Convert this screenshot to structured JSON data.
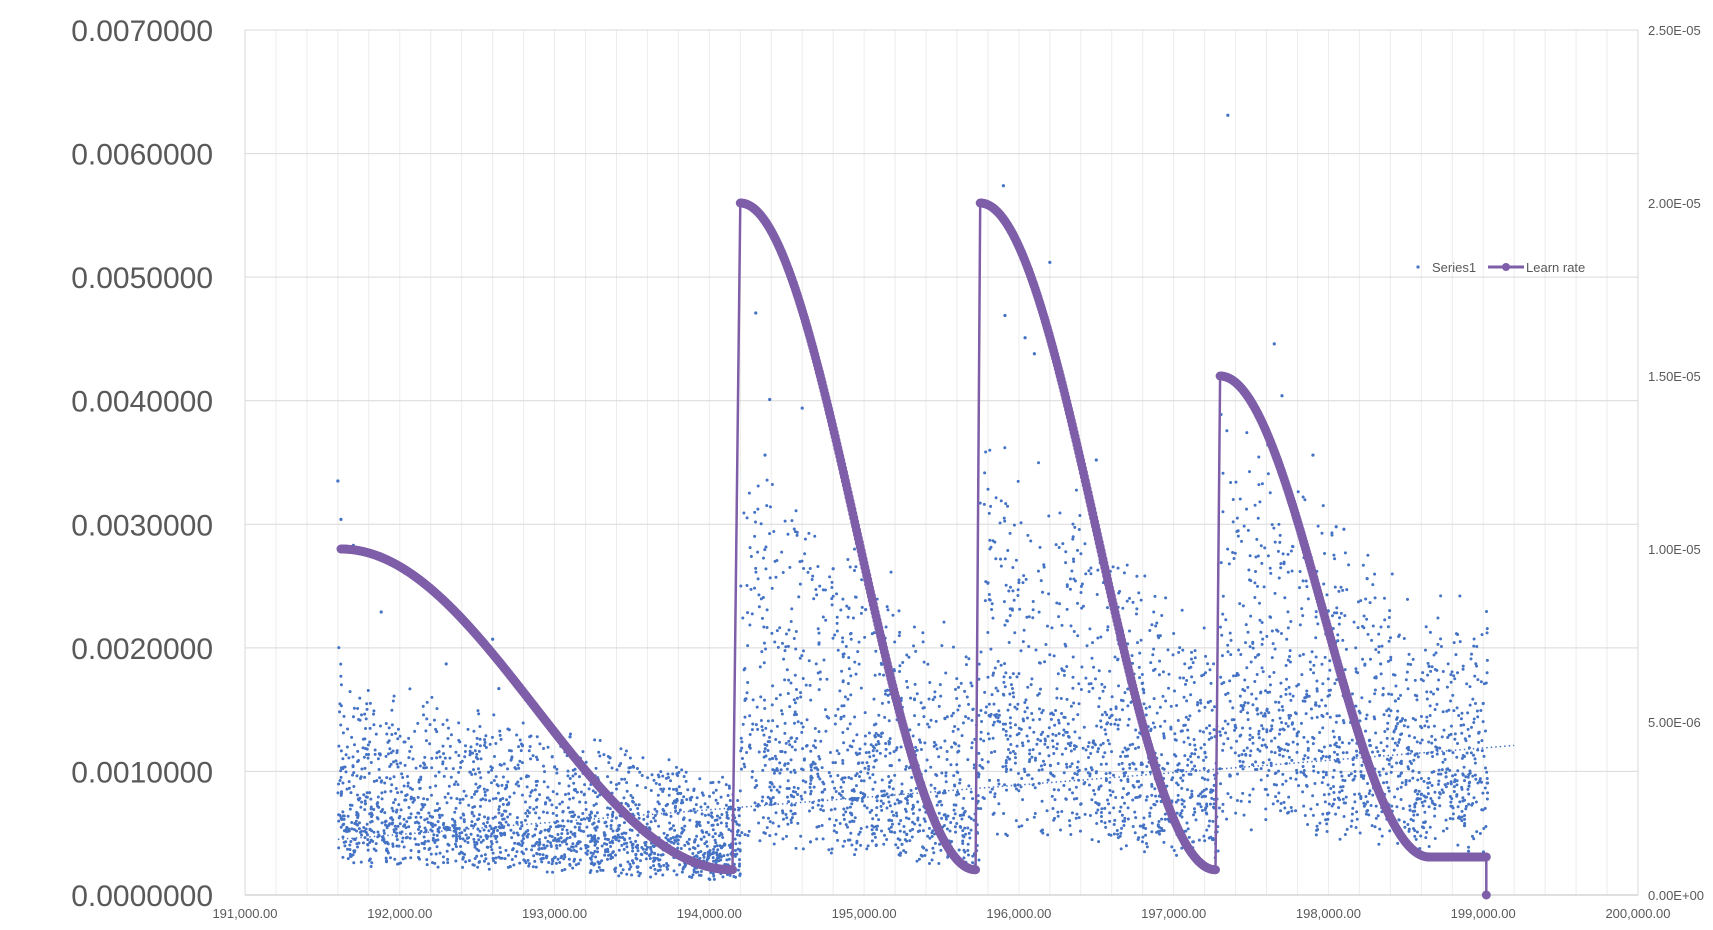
{
  "chart_data": {
    "type": "scatter",
    "x_range": [
      191000,
      200000
    ],
    "x_ticks": [
      191000,
      192000,
      193000,
      194000,
      195000,
      196000,
      197000,
      198000,
      199000,
      200000
    ],
    "x_tick_labels": [
      "191,000.00",
      "192,000.00",
      "193,000.00",
      "194,000.00",
      "195,000.00",
      "196,000.00",
      "197,000.00",
      "198,000.00",
      "199,000.00",
      "200,000.00"
    ],
    "y_left_range": [
      0,
      0.007
    ],
    "y_left_ticks": [
      0,
      0.001,
      0.002,
      0.003,
      0.004,
      0.005,
      0.006,
      0.007
    ],
    "y_left_tick_labels": [
      "0.0000000",
      "0.0010000",
      "0.0020000",
      "0.0030000",
      "0.0040000",
      "0.0050000",
      "0.0060000",
      "0.0070000"
    ],
    "y_right_range": [
      0,
      2.5e-05
    ],
    "y_right_ticks": [
      0,
      5e-06,
      1e-05,
      1.5e-05,
      2e-05,
      2.5e-05
    ],
    "y_right_tick_labels": [
      "0.00E+00",
      "5.00E-06",
      "1.00E-05",
      "1.50E-05",
      "2.00E-05",
      "2.50E-05"
    ],
    "gridlines": true,
    "legend_position": "right",
    "colors": {
      "series1": "#4472c4",
      "learn_rate": "#7e5ea8",
      "grid": "#d9d9d9"
    },
    "series": [
      {
        "name": "Series1",
        "kind": "scatter",
        "axis": "left",
        "sample_points": [
          [
            191600,
            0.00335
          ],
          [
            191620,
            0.00304
          ],
          [
            191700,
            0.00283
          ],
          [
            191880,
            0.00229
          ],
          [
            192300,
            0.00187
          ],
          [
            192600,
            0.00207
          ],
          [
            192640,
            0.00167
          ],
          [
            193100,
            0.00128
          ],
          [
            194300,
            0.00471
          ],
          [
            194360,
            0.00356
          ],
          [
            194390,
            0.00401
          ],
          [
            194600,
            0.00394
          ],
          [
            194800,
            0.00264
          ],
          [
            195010,
            0.00231
          ],
          [
            195900,
            0.00574
          ],
          [
            196000,
            0.00523
          ],
          [
            195910,
            0.00469
          ],
          [
            196040,
            0.00451
          ],
          [
            196200,
            0.00512
          ],
          [
            196100,
            0.00438
          ],
          [
            196500,
            0.00352
          ],
          [
            197350,
            0.00631
          ],
          [
            197650,
            0.00446
          ],
          [
            197700,
            0.00404
          ],
          [
            197900,
            0.00356
          ],
          [
            198050,
            0.00298
          ],
          [
            198100,
            0.00296
          ],
          [
            198250,
            0.00256
          ],
          [
            198650,
            0.00185
          ],
          [
            199000,
            0.00155
          ]
        ],
        "trendline_points": [
          [
            191600,
            0.00045
          ],
          [
            199200,
            0.00121
          ]
        ]
      },
      {
        "name": "Learn rate",
        "kind": "line",
        "axis": "right",
        "segments": [
          {
            "start": 191620,
            "end": 194150,
            "max": 1e-05,
            "min": 7.3e-07
          },
          {
            "start": 194200,
            "end": 195720,
            "max": 2e-05,
            "min": 7.3e-07
          },
          {
            "start": 195750,
            "end": 197270,
            "max": 2e-05,
            "min": 7.3e-07
          },
          {
            "start": 197300,
            "end": 198650,
            "max": 1.5e-05,
            "min": 1.1e-06
          },
          {
            "start": 198650,
            "end": 199020,
            "max": 1.1e-06,
            "min": 1.1e-06
          }
        ],
        "final_point": [
          199020,
          0
        ]
      }
    ]
  }
}
